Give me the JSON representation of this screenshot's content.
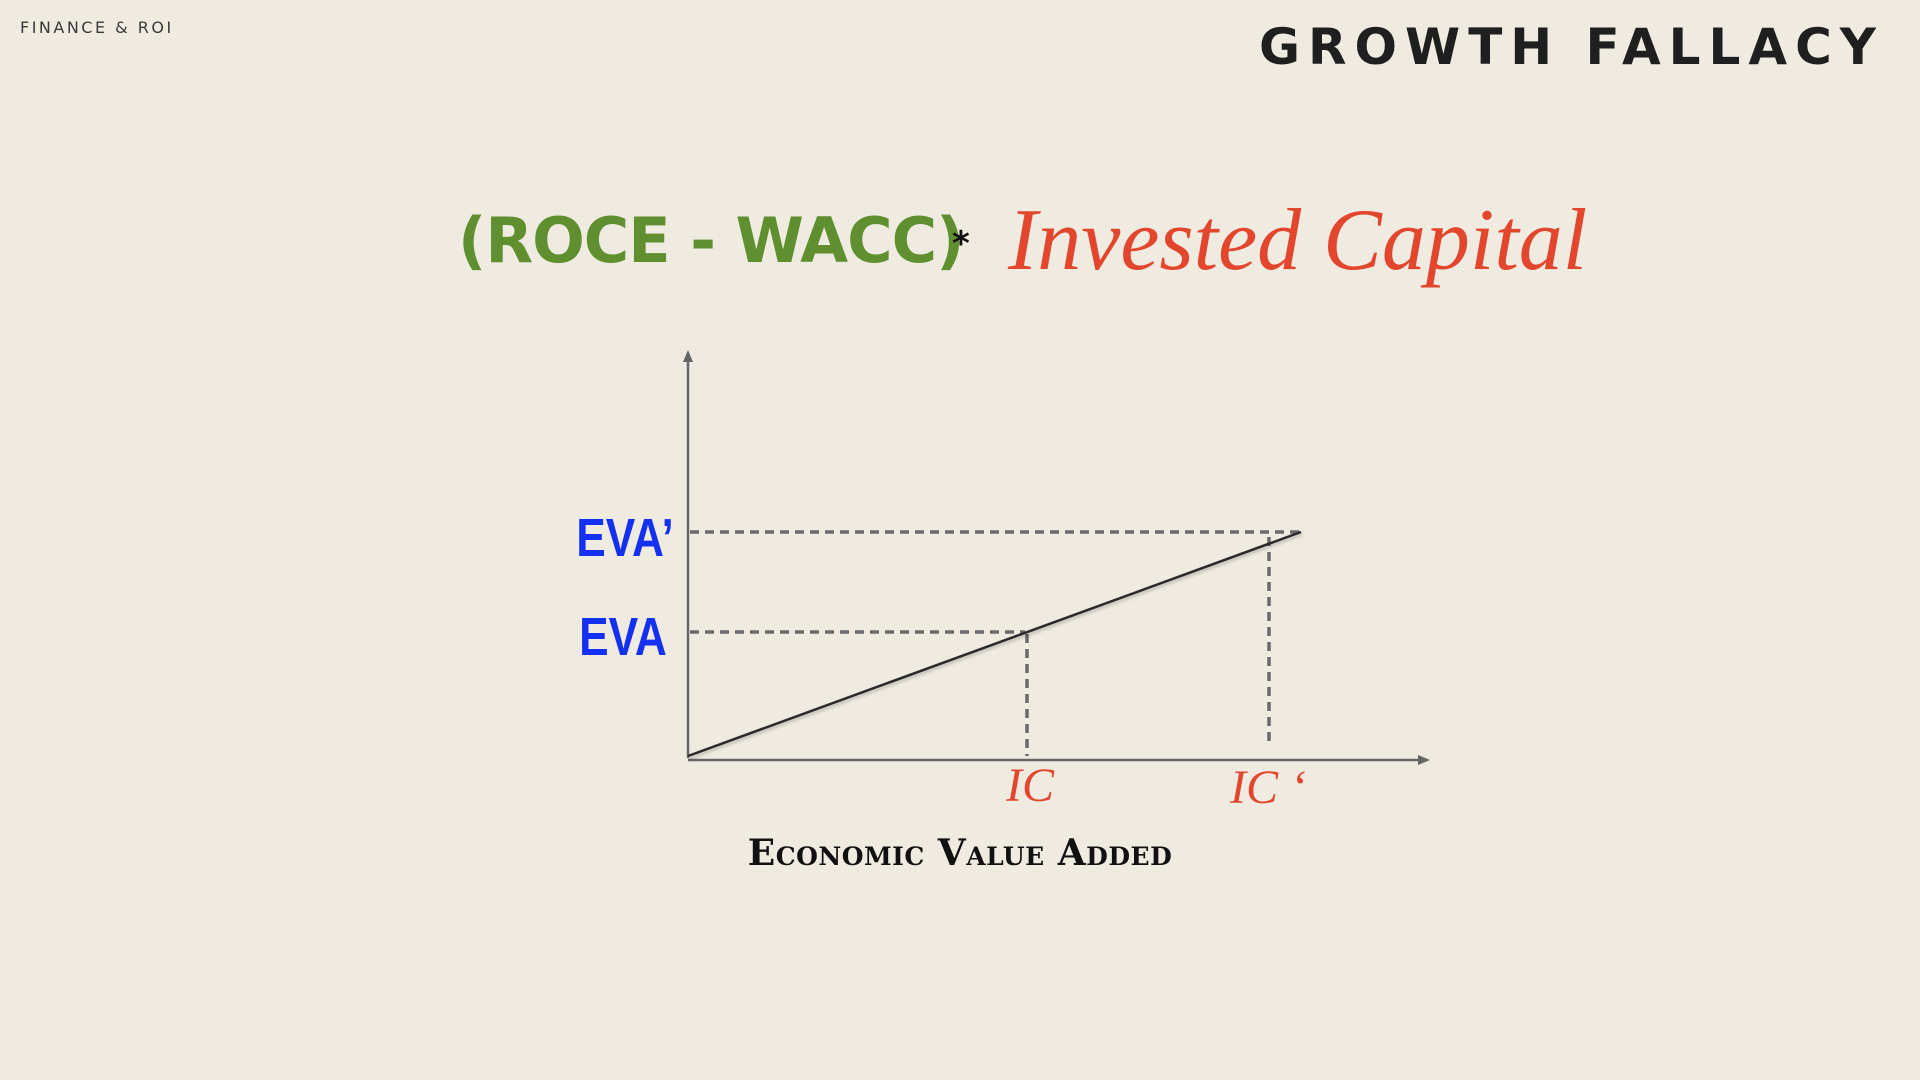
{
  "header": {
    "section": "FINANCE & ROI",
    "title": "GROWTH FALLACY"
  },
  "formula": {
    "spread": "(ROCE - WACC)",
    "operator": "*",
    "capital": "Invested Capital"
  },
  "diagram": {
    "y_labels": {
      "eva_prime": "EVA’",
      "eva": "EVA"
    },
    "x_labels": {
      "ic": "IC",
      "ic_prime": "IC ‘"
    },
    "caption": "Economic Value Added"
  },
  "colors": {
    "background": "#efebe1",
    "green": "#5f8f2e",
    "red": "#e2472e",
    "blue": "#1430f0",
    "axis": "#666666",
    "dashed": "#6a6a6a"
  }
}
